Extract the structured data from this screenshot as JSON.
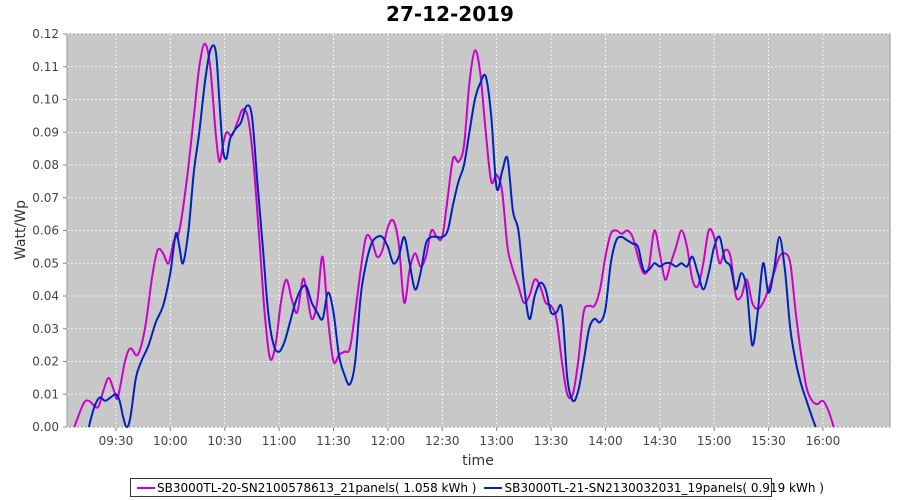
{
  "chart_data": {
    "type": "line",
    "title": "27-12-2019",
    "xlabel": "time",
    "ylabel": "Watt/Wp",
    "xlim": [
      "09:03",
      "16:37"
    ],
    "ylim": [
      0,
      0.12
    ],
    "grid": true,
    "x_ticks": [
      "09:30",
      "10:00",
      "10:30",
      "11:00",
      "11:30",
      "12:00",
      "12:30",
      "13:00",
      "13:30",
      "14:00",
      "14:30",
      "15:00",
      "15:30",
      "16:00"
    ],
    "y_ticks": [
      "0.00",
      "0.01",
      "0.02",
      "0.03",
      "0.04",
      "0.05",
      "0.06",
      "0.07",
      "0.08",
      "0.09",
      "0.10",
      "0.11",
      "0.12"
    ],
    "background": "#c8c8c8",
    "series": [
      {
        "name": "SB3000TL-20-SN2100578613_21panels( 1.058 kWh )",
        "color": "#cc00cc",
        "points": [
          [
            "09:07",
            0.0
          ],
          [
            "09:12",
            0.007
          ],
          [
            "09:15",
            0.008
          ],
          [
            "09:20",
            0.006
          ],
          [
            "09:23",
            0.011
          ],
          [
            "09:26",
            0.015
          ],
          [
            "09:29",
            0.011
          ],
          [
            "09:31",
            0.009
          ],
          [
            "09:35",
            0.02
          ],
          [
            "09:38",
            0.024
          ],
          [
            "09:42",
            0.022
          ],
          [
            "09:46",
            0.03
          ],
          [
            "09:50",
            0.046
          ],
          [
            "09:53",
            0.054
          ],
          [
            "09:56",
            0.053
          ],
          [
            "09:59",
            0.05
          ],
          [
            "10:02",
            0.057
          ],
          [
            "10:05",
            0.06
          ],
          [
            "10:09",
            0.075
          ],
          [
            "10:13",
            0.095
          ],
          [
            "10:16",
            0.11
          ],
          [
            "10:19",
            0.117
          ],
          [
            "10:22",
            0.11
          ],
          [
            "10:25",
            0.09
          ],
          [
            "10:27",
            0.081
          ],
          [
            "10:29",
            0.086
          ],
          [
            "10:31",
            0.09
          ],
          [
            "10:34",
            0.089
          ],
          [
            "10:37",
            0.093
          ],
          [
            "10:40",
            0.097
          ],
          [
            "10:43",
            0.094
          ],
          [
            "10:46",
            0.08
          ],
          [
            "10:49",
            0.058
          ],
          [
            "10:52",
            0.035
          ],
          [
            "10:55",
            0.021
          ],
          [
            "10:58",
            0.025
          ],
          [
            "11:01",
            0.038
          ],
          [
            "11:04",
            0.045
          ],
          [
            "11:07",
            0.039
          ],
          [
            "11:10",
            0.035
          ],
          [
            "11:13",
            0.045
          ],
          [
            "11:15",
            0.042
          ],
          [
            "11:18",
            0.033
          ],
          [
            "11:21",
            0.038
          ],
          [
            "11:24",
            0.052
          ],
          [
            "11:27",
            0.033
          ],
          [
            "11:30",
            0.02
          ],
          [
            "11:33",
            0.022
          ],
          [
            "11:36",
            0.023
          ],
          [
            "11:39",
            0.024
          ],
          [
            "11:42",
            0.035
          ],
          [
            "11:45",
            0.048
          ],
          [
            "11:48",
            0.058
          ],
          [
            "11:51",
            0.057
          ],
          [
            "11:54",
            0.052
          ],
          [
            "11:57",
            0.054
          ],
          [
            "12:00",
            0.061
          ],
          [
            "12:03",
            0.063
          ],
          [
            "12:06",
            0.056
          ],
          [
            "12:09",
            0.038
          ],
          [
            "12:12",
            0.048
          ],
          [
            "12:15",
            0.053
          ],
          [
            "12:18",
            0.049
          ],
          [
            "12:21",
            0.052
          ],
          [
            "12:24",
            0.06
          ],
          [
            "12:27",
            0.058
          ],
          [
            "12:30",
            0.058
          ],
          [
            "12:33",
            0.07
          ],
          [
            "12:36",
            0.082
          ],
          [
            "12:39",
            0.081
          ],
          [
            "12:42",
            0.086
          ],
          [
            "12:45",
            0.105
          ],
          [
            "12:48",
            0.115
          ],
          [
            "12:51",
            0.108
          ],
          [
            "12:54",
            0.09
          ],
          [
            "12:57",
            0.075
          ],
          [
            "13:00",
            0.077
          ],
          [
            "13:03",
            0.072
          ],
          [
            "13:06",
            0.055
          ],
          [
            "13:09",
            0.048
          ],
          [
            "13:12",
            0.043
          ],
          [
            "13:15",
            0.038
          ],
          [
            "13:18",
            0.04
          ],
          [
            "13:21",
            0.045
          ],
          [
            "13:24",
            0.043
          ],
          [
            "13:27",
            0.038
          ],
          [
            "13:30",
            0.037
          ],
          [
            "13:33",
            0.033
          ],
          [
            "13:36",
            0.02
          ],
          [
            "13:39",
            0.01
          ],
          [
            "13:42",
            0.01
          ],
          [
            "13:45",
            0.02
          ],
          [
            "13:48",
            0.035
          ],
          [
            "13:51",
            0.037
          ],
          [
            "13:54",
            0.037
          ],
          [
            "13:57",
            0.042
          ],
          [
            "14:00",
            0.052
          ],
          [
            "14:03",
            0.059
          ],
          [
            "14:06",
            0.06
          ],
          [
            "14:09",
            0.059
          ],
          [
            "14:12",
            0.06
          ],
          [
            "14:15",
            0.058
          ],
          [
            "14:18",
            0.052
          ],
          [
            "14:21",
            0.047
          ],
          [
            "14:24",
            0.049
          ],
          [
            "14:27",
            0.06
          ],
          [
            "14:30",
            0.053
          ],
          [
            "14:33",
            0.045
          ],
          [
            "14:36",
            0.05
          ],
          [
            "14:39",
            0.055
          ],
          [
            "14:42",
            0.06
          ],
          [
            "14:45",
            0.055
          ],
          [
            "14:48",
            0.045
          ],
          [
            "14:51",
            0.043
          ],
          [
            "14:54",
            0.05
          ],
          [
            "14:57",
            0.06
          ],
          [
            "15:00",
            0.058
          ],
          [
            "15:03",
            0.05
          ],
          [
            "15:06",
            0.054
          ],
          [
            "15:09",
            0.052
          ],
          [
            "15:12",
            0.04
          ],
          [
            "15:15",
            0.04
          ],
          [
            "15:18",
            0.045
          ],
          [
            "15:21",
            0.038
          ],
          [
            "15:24",
            0.036
          ],
          [
            "15:27",
            0.038
          ],
          [
            "15:30",
            0.042
          ],
          [
            "15:33",
            0.047
          ],
          [
            "15:36",
            0.052
          ],
          [
            "15:39",
            0.053
          ],
          [
            "15:42",
            0.05
          ],
          [
            "15:45",
            0.035
          ],
          [
            "15:48",
            0.022
          ],
          [
            "15:51",
            0.012
          ],
          [
            "15:54",
            0.008
          ],
          [
            "15:57",
            0.007
          ],
          [
            "16:00",
            0.008
          ],
          [
            "16:03",
            0.005
          ],
          [
            "16:06",
            0.0
          ]
        ]
      },
      {
        "name": "SB3000TL-21-SN2130032031_19panels( 0.919 kWh )",
        "color": "#0022bb",
        "points": [
          [
            "09:15",
            0.0
          ],
          [
            "09:18",
            0.006
          ],
          [
            "09:21",
            0.009
          ],
          [
            "09:24",
            0.008
          ],
          [
            "09:27",
            0.009
          ],
          [
            "09:30",
            0.01
          ],
          [
            "09:32",
            0.008
          ],
          [
            "09:34",
            0.003
          ],
          [
            "09:36",
            0.0
          ],
          [
            "09:38",
            0.003
          ],
          [
            "09:41",
            0.015
          ],
          [
            "09:44",
            0.02
          ],
          [
            "09:48",
            0.025
          ],
          [
            "09:52",
            0.032
          ],
          [
            "09:56",
            0.037
          ],
          [
            "10:00",
            0.047
          ],
          [
            "10:03",
            0.059
          ],
          [
            "10:05",
            0.055
          ],
          [
            "10:07",
            0.05
          ],
          [
            "10:10",
            0.06
          ],
          [
            "10:13",
            0.078
          ],
          [
            "10:16",
            0.09
          ],
          [
            "10:19",
            0.105
          ],
          [
            "10:22",
            0.115
          ],
          [
            "10:25",
            0.115
          ],
          [
            "10:27",
            0.1
          ],
          [
            "10:29",
            0.085
          ],
          [
            "10:31",
            0.082
          ],
          [
            "10:33",
            0.088
          ],
          [
            "10:36",
            0.091
          ],
          [
            "10:39",
            0.093
          ],
          [
            "10:42",
            0.098
          ],
          [
            "10:45",
            0.095
          ],
          [
            "10:48",
            0.075
          ],
          [
            "10:51",
            0.055
          ],
          [
            "10:54",
            0.035
          ],
          [
            "10:57",
            0.025
          ],
          [
            "11:00",
            0.023
          ],
          [
            "11:03",
            0.026
          ],
          [
            "11:06",
            0.032
          ],
          [
            "11:09",
            0.038
          ],
          [
            "11:12",
            0.042
          ],
          [
            "11:15",
            0.043
          ],
          [
            "11:18",
            0.038
          ],
          [
            "11:21",
            0.035
          ],
          [
            "11:24",
            0.033
          ],
          [
            "11:27",
            0.041
          ],
          [
            "11:30",
            0.035
          ],
          [
            "11:33",
            0.022
          ],
          [
            "11:36",
            0.016
          ],
          [
            "11:39",
            0.013
          ],
          [
            "11:42",
            0.02
          ],
          [
            "11:45",
            0.04
          ],
          [
            "11:48",
            0.05
          ],
          [
            "11:51",
            0.056
          ],
          [
            "11:54",
            0.058
          ],
          [
            "11:57",
            0.058
          ],
          [
            "12:00",
            0.055
          ],
          [
            "12:03",
            0.05
          ],
          [
            "12:06",
            0.052
          ],
          [
            "12:09",
            0.058
          ],
          [
            "12:12",
            0.05
          ],
          [
            "12:15",
            0.042
          ],
          [
            "12:18",
            0.047
          ],
          [
            "12:21",
            0.056
          ],
          [
            "12:24",
            0.058
          ],
          [
            "12:27",
            0.058
          ],
          [
            "12:30",
            0.058
          ],
          [
            "12:33",
            0.06
          ],
          [
            "12:36",
            0.068
          ],
          [
            "12:39",
            0.075
          ],
          [
            "12:42",
            0.08
          ],
          [
            "12:45",
            0.09
          ],
          [
            "12:48",
            0.1
          ],
          [
            "12:51",
            0.105
          ],
          [
            "12:54",
            0.107
          ],
          [
            "12:57",
            0.095
          ],
          [
            "13:00",
            0.073
          ],
          [
            "13:03",
            0.078
          ],
          [
            "13:06",
            0.082
          ],
          [
            "13:09",
            0.066
          ],
          [
            "13:12",
            0.06
          ],
          [
            "13:15",
            0.044
          ],
          [
            "13:18",
            0.033
          ],
          [
            "13:21",
            0.04
          ],
          [
            "13:24",
            0.044
          ],
          [
            "13:27",
            0.042
          ],
          [
            "13:30",
            0.035
          ],
          [
            "13:33",
            0.035
          ],
          [
            "13:36",
            0.036
          ],
          [
            "13:39",
            0.015
          ],
          [
            "13:42",
            0.008
          ],
          [
            "13:45",
            0.011
          ],
          [
            "13:48",
            0.02
          ],
          [
            "13:51",
            0.03
          ],
          [
            "13:54",
            0.033
          ],
          [
            "13:57",
            0.032
          ],
          [
            "14:00",
            0.036
          ],
          [
            "14:03",
            0.05
          ],
          [
            "14:06",
            0.057
          ],
          [
            "14:09",
            0.058
          ],
          [
            "14:12",
            0.057
          ],
          [
            "14:15",
            0.056
          ],
          [
            "14:18",
            0.055
          ],
          [
            "14:21",
            0.048
          ],
          [
            "14:24",
            0.048
          ],
          [
            "14:27",
            0.05
          ],
          [
            "14:30",
            0.049
          ],
          [
            "14:33",
            0.05
          ],
          [
            "14:36",
            0.05
          ],
          [
            "14:39",
            0.049
          ],
          [
            "14:42",
            0.05
          ],
          [
            "14:45",
            0.049
          ],
          [
            "14:48",
            0.052
          ],
          [
            "14:51",
            0.047
          ],
          [
            "14:54",
            0.042
          ],
          [
            "14:57",
            0.047
          ],
          [
            "15:00",
            0.055
          ],
          [
            "15:03",
            0.058
          ],
          [
            "15:06",
            0.051
          ],
          [
            "15:09",
            0.049
          ],
          [
            "15:12",
            0.042
          ],
          [
            "15:15",
            0.047
          ],
          [
            "15:18",
            0.042
          ],
          [
            "15:21",
            0.025
          ],
          [
            "15:24",
            0.035
          ],
          [
            "15:27",
            0.05
          ],
          [
            "15:30",
            0.041
          ],
          [
            "15:33",
            0.048
          ],
          [
            "15:36",
            0.058
          ],
          [
            "15:39",
            0.048
          ],
          [
            "15:42",
            0.03
          ],
          [
            "15:45",
            0.02
          ],
          [
            "15:48",
            0.013
          ],
          [
            "15:51",
            0.008
          ],
          [
            "15:54",
            0.003
          ],
          [
            "15:56",
            0.0
          ]
        ]
      }
    ]
  }
}
